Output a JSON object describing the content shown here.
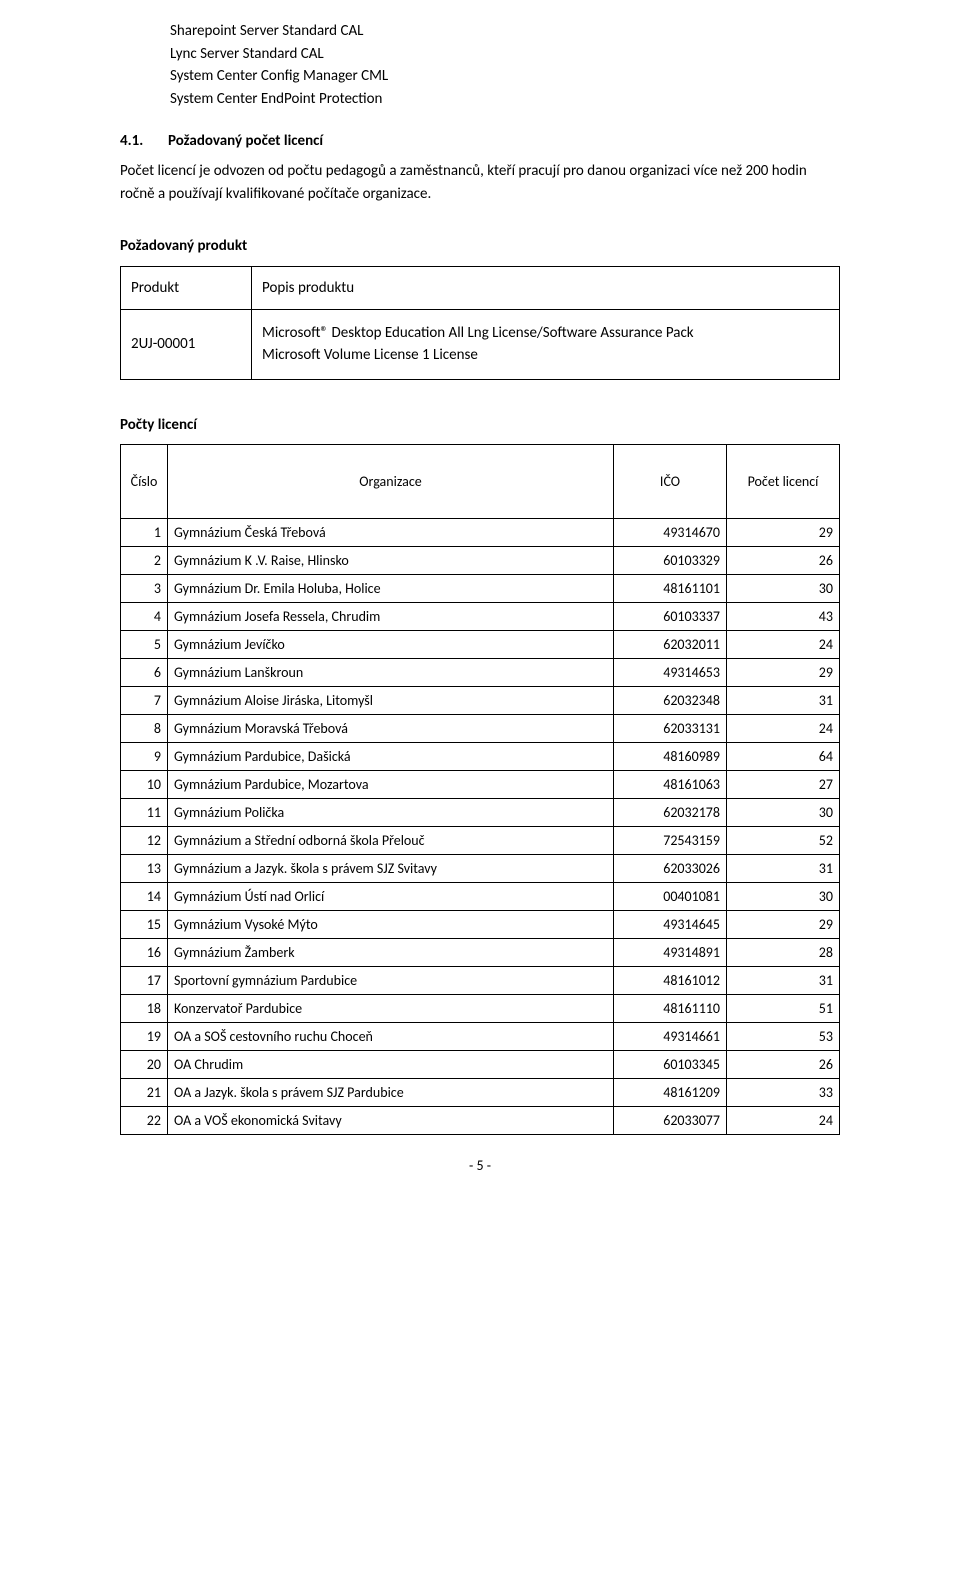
{
  "topList": [
    "Sharepoint Server Standard CAL",
    "Lync Server Standard CAL",
    "System Center Config Manager CML",
    "System Center EndPoint Protection"
  ],
  "section41": {
    "num": "4.1.",
    "title": "Požadovaný počet licencí",
    "para": "Počet licencí je odvozen od počtu pedagogů a zaměstnanců, kteří pracují pro danou organizaci více než 200 hodin ročně a používají kvalifikované počítače organizace."
  },
  "productBlock": {
    "heading": "Požadovaný produkt",
    "header": {
      "col1": "Produkt",
      "col2": "Popis produktu"
    },
    "row": {
      "code": "2UJ-00001",
      "desc1": "Microsoft® Desktop Education All Lng License/Software Assurance Pack",
      "desc2": "Microsoft Volume License 1 License"
    }
  },
  "licenseBlock": {
    "heading": "Počty licencí",
    "header": {
      "num": "Číslo",
      "org": "Organizace",
      "ico": "IČO",
      "cnt": "Počet licencí"
    },
    "rows": [
      {
        "n": "1",
        "org": "Gymnázium Česká Třebová",
        "ico": "49314670",
        "cnt": "29"
      },
      {
        "n": "2",
        "org": "Gymnázium K .V. Raise, Hlinsko",
        "ico": "60103329",
        "cnt": "26"
      },
      {
        "n": "3",
        "org": "Gymnázium Dr. Emila Holuba, Holice",
        "ico": "48161101",
        "cnt": "30"
      },
      {
        "n": "4",
        "org": "Gymnázium Josefa Ressela, Chrudim",
        "ico": "60103337",
        "cnt": "43"
      },
      {
        "n": "5",
        "org": "Gymnázium Jevíčko",
        "ico": "62032011",
        "cnt": "24"
      },
      {
        "n": "6",
        "org": "Gymnázium Lanškroun",
        "ico": "49314653",
        "cnt": "29"
      },
      {
        "n": "7",
        "org": "Gymnázium Aloise Jiráska, Litomyšl",
        "ico": "62032348",
        "cnt": "31"
      },
      {
        "n": "8",
        "org": "Gymnázium Moravská Třebová",
        "ico": "62033131",
        "cnt": "24"
      },
      {
        "n": "9",
        "org": "Gymnázium Pardubice, Dašická",
        "ico": "48160989",
        "cnt": "64"
      },
      {
        "n": "10",
        "org": "Gymnázium Pardubice, Mozartova",
        "ico": "48161063",
        "cnt": "27"
      },
      {
        "n": "11",
        "org": "Gymnázium Polička",
        "ico": "62032178",
        "cnt": "30"
      },
      {
        "n": "12",
        "org": "Gymnázium a Střední odborná škola Přelouč",
        "ico": "72543159",
        "cnt": "52"
      },
      {
        "n": "13",
        "org": "Gymnázium a Jazyk. škola s právem SJZ Svitavy",
        "ico": "62033026",
        "cnt": "31"
      },
      {
        "n": "14",
        "org": "Gymnázium Ústí nad Orlicí",
        "ico": "00401081",
        "cnt": "30"
      },
      {
        "n": "15",
        "org": "Gymnázium Vysoké Mýto",
        "ico": "49314645",
        "cnt": "29"
      },
      {
        "n": "16",
        "org": "Gymnázium Žamberk",
        "ico": "49314891",
        "cnt": "28"
      },
      {
        "n": "17",
        "org": "Sportovní gymnázium Pardubice",
        "ico": "48161012",
        "cnt": "31"
      },
      {
        "n": "18",
        "org": "Konzervatoř Pardubice",
        "ico": "48161110",
        "cnt": "51"
      },
      {
        "n": "19",
        "org": "OA a SOŠ cestovního ruchu Choceň",
        "ico": "49314661",
        "cnt": "53"
      },
      {
        "n": "20",
        "org": "OA Chrudim",
        "ico": "60103345",
        "cnt": "26"
      },
      {
        "n": "21",
        "org": "OA a Jazyk. škola s právem SJZ Pardubice",
        "ico": "48161209",
        "cnt": "33"
      },
      {
        "n": "22",
        "org": "OA a VOŠ ekonomická Svitavy",
        "ico": "62033077",
        "cnt": "24"
      }
    ]
  },
  "footer": "- 5 -"
}
